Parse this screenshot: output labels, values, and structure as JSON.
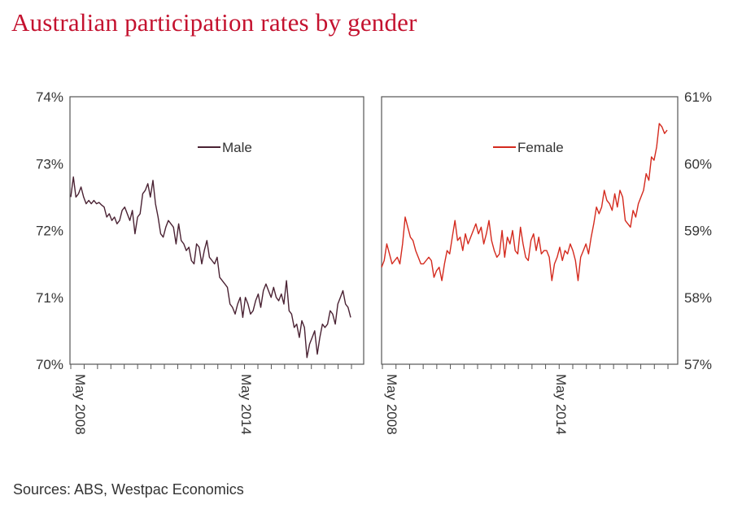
{
  "title": "Australian participation rates by gender",
  "source": "Sources: ABS, Westpac Economics",
  "colors": {
    "title": "#c4122f",
    "male": "#4a2233",
    "female": "#d42a1e",
    "axis": "#555555"
  },
  "chart_data": [
    {
      "type": "line",
      "ylim": [
        70,
        74
      ],
      "y_ticks": [
        "70%",
        "71%",
        "72%",
        "73%",
        "74%"
      ],
      "x_ticks": [
        "May 2008",
        "May 2014"
      ],
      "x_range": [
        "2008-05",
        "2017-12"
      ],
      "y_axis_side": "left",
      "legend_position": "top-center",
      "grid": false,
      "series": [
        {
          "name": "Male",
          "color": "#4a2233",
          "values": [
            72.5,
            72.8,
            72.5,
            72.55,
            72.65,
            72.5,
            72.4,
            72.45,
            72.4,
            72.45,
            72.4,
            72.42,
            72.38,
            72.35,
            72.2,
            72.25,
            72.15,
            72.2,
            72.1,
            72.15,
            72.3,
            72.35,
            72.25,
            72.15,
            72.3,
            71.95,
            72.2,
            72.25,
            72.55,
            72.6,
            72.7,
            72.5,
            72.75,
            72.4,
            72.2,
            71.95,
            71.9,
            72.05,
            72.15,
            72.1,
            72.05,
            71.8,
            72.1,
            71.85,
            71.8,
            71.7,
            71.75,
            71.55,
            71.5,
            71.8,
            71.75,
            71.5,
            71.7,
            71.85,
            71.6,
            71.55,
            71.5,
            71.6,
            71.3,
            71.25,
            71.2,
            71.15,
            70.9,
            70.85,
            70.75,
            70.9,
            71.0,
            70.7,
            71.0,
            70.9,
            70.75,
            70.8,
            70.95,
            71.05,
            70.85,
            71.1,
            71.2,
            71.1,
            71.0,
            71.15,
            71.0,
            70.95,
            71.05,
            70.9,
            71.25,
            70.8,
            70.75,
            70.55,
            70.6,
            70.4,
            70.65,
            70.55,
            70.1,
            70.3,
            70.4,
            70.5,
            70.15,
            70.4,
            70.6,
            70.55,
            70.6,
            70.8,
            70.75,
            70.6,
            70.9,
            71.0,
            71.1,
            70.9,
            70.85,
            70.7
          ]
        }
      ]
    },
    {
      "type": "line",
      "ylim": [
        57,
        61
      ],
      "y_ticks": [
        "57%",
        "58%",
        "59%",
        "60%",
        "61%"
      ],
      "x_ticks": [
        "May 2008",
        "May 2014"
      ],
      "x_range": [
        "2008-05",
        "2017-12"
      ],
      "y_axis_side": "right",
      "legend_position": "top-center",
      "grid": false,
      "series": [
        {
          "name": "Female",
          "color": "#d42a1e",
          "values": [
            58.45,
            58.55,
            58.8,
            58.65,
            58.5,
            58.55,
            58.6,
            58.5,
            58.8,
            59.2,
            59.05,
            58.9,
            58.85,
            58.7,
            58.6,
            58.5,
            58.5,
            58.55,
            58.6,
            58.55,
            58.3,
            58.4,
            58.45,
            58.25,
            58.5,
            58.7,
            58.65,
            58.9,
            59.15,
            58.85,
            58.9,
            58.7,
            58.95,
            58.8,
            58.9,
            59.0,
            59.1,
            58.95,
            59.05,
            58.8,
            58.95,
            59.15,
            58.85,
            58.7,
            58.6,
            58.65,
            59.0,
            58.6,
            58.9,
            58.8,
            59.0,
            58.7,
            58.65,
            59.05,
            58.8,
            58.6,
            58.55,
            58.85,
            58.95,
            58.7,
            58.9,
            58.65,
            58.7,
            58.7,
            58.6,
            58.25,
            58.5,
            58.6,
            58.75,
            58.55,
            58.7,
            58.65,
            58.8,
            58.7,
            58.55,
            58.25,
            58.6,
            58.7,
            58.8,
            58.65,
            58.9,
            59.1,
            59.35,
            59.25,
            59.35,
            59.6,
            59.45,
            59.4,
            59.3,
            59.55,
            59.35,
            59.6,
            59.5,
            59.15,
            59.1,
            59.05,
            59.3,
            59.2,
            59.4,
            59.5,
            59.6,
            59.85,
            59.75,
            60.1,
            60.05,
            60.25,
            60.6,
            60.55,
            60.45,
            60.5
          ]
        }
      ]
    }
  ]
}
